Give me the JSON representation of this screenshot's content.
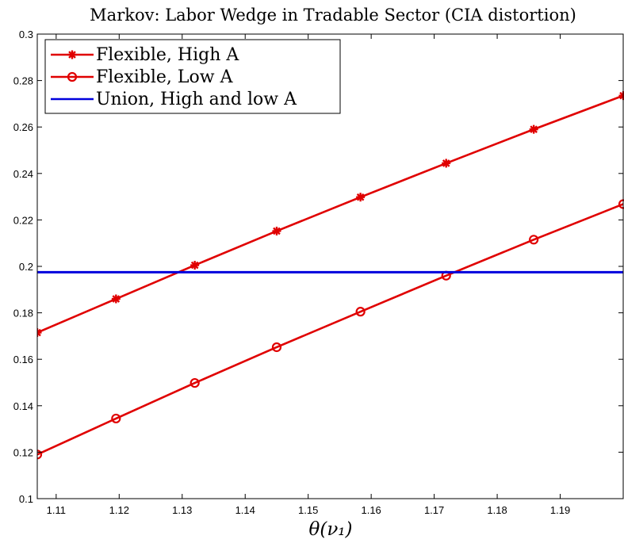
{
  "chart_data": {
    "type": "line",
    "title": "Markov: Labor Wedge in Tradable Sector (CIA distortion)",
    "xlabel": "θ(ν₁)",
    "ylabel": "",
    "xlim": [
      1.107,
      1.2
    ],
    "ylim": [
      0.1,
      0.3
    ],
    "xticks": [
      "1.11",
      "1.12",
      "1.13",
      "1.14",
      "1.15",
      "1.16",
      "1.17",
      "1.18",
      "1.19"
    ],
    "yticks": [
      "0.1",
      "0.12",
      "0.14",
      "0.16",
      "0.18",
      "0.2",
      "0.22",
      "0.24",
      "0.26",
      "0.28",
      "0.3"
    ],
    "grid": false,
    "legend_position": "top-left",
    "series": [
      {
        "name": "Flexible, High A",
        "color": "#e00000",
        "marker": "asterisk",
        "x": [
          1.107,
          1.1195,
          1.132,
          1.145,
          1.1583,
          1.1719,
          1.1858,
          1.2
        ],
        "y": [
          0.1715,
          0.186,
          0.2005,
          0.2152,
          0.2298,
          0.2444,
          0.259,
          0.2735
        ]
      },
      {
        "name": "Flexible, Low A",
        "color": "#e00000",
        "marker": "circle",
        "x": [
          1.107,
          1.1195,
          1.132,
          1.145,
          1.1583,
          1.1719,
          1.1858,
          1.2
        ],
        "y": [
          0.119,
          0.1345,
          0.1498,
          0.1652,
          0.1805,
          0.196,
          0.2115,
          0.2268
        ]
      },
      {
        "name": "Union, High and low A",
        "color": "#0000dd",
        "marker": "none",
        "x": [
          1.107,
          1.2
        ],
        "y": [
          0.1975,
          0.1975
        ]
      }
    ]
  }
}
